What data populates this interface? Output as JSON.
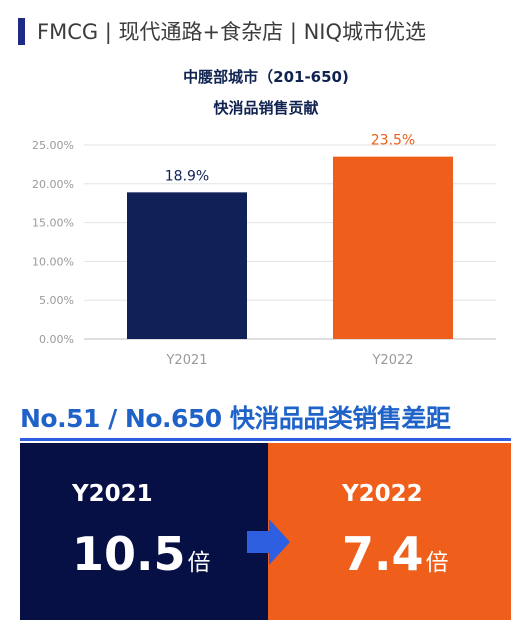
{
  "header": {
    "title": "FMCG | 现代通路+食杂店 | NIQ城市优选",
    "accent_color": "#1f2a86"
  },
  "chart_data": {
    "type": "bar",
    "title": "中腰部城市（201-650)",
    "subtitle": "快消品销售贡献",
    "categories": [
      "Y2021",
      "Y2022"
    ],
    "values": [
      18.9,
      23.5
    ],
    "value_labels": [
      "18.9%",
      "23.5%"
    ],
    "colors": [
      "#0f2157",
      "#ef5f1b"
    ],
    "yticks": [
      "0.00%",
      "5.00%",
      "10.00%",
      "15.00%",
      "20.00%",
      "25.00%"
    ],
    "ylim": [
      0,
      25
    ],
    "xlabel": "",
    "ylabel": "",
    "grid": true
  },
  "gap": {
    "title": "No.51 / No.650 快消品品类销售差距",
    "left": {
      "year": "Y2021",
      "value": "10.5",
      "unit": "倍",
      "color": "#061044"
    },
    "right": {
      "year": "Y2022",
      "value": "7.4",
      "unit": "倍",
      "color": "#ef5f1b"
    },
    "arrow_icon": "arrow-right-icon",
    "arrow_color": "#2d5fe0"
  }
}
